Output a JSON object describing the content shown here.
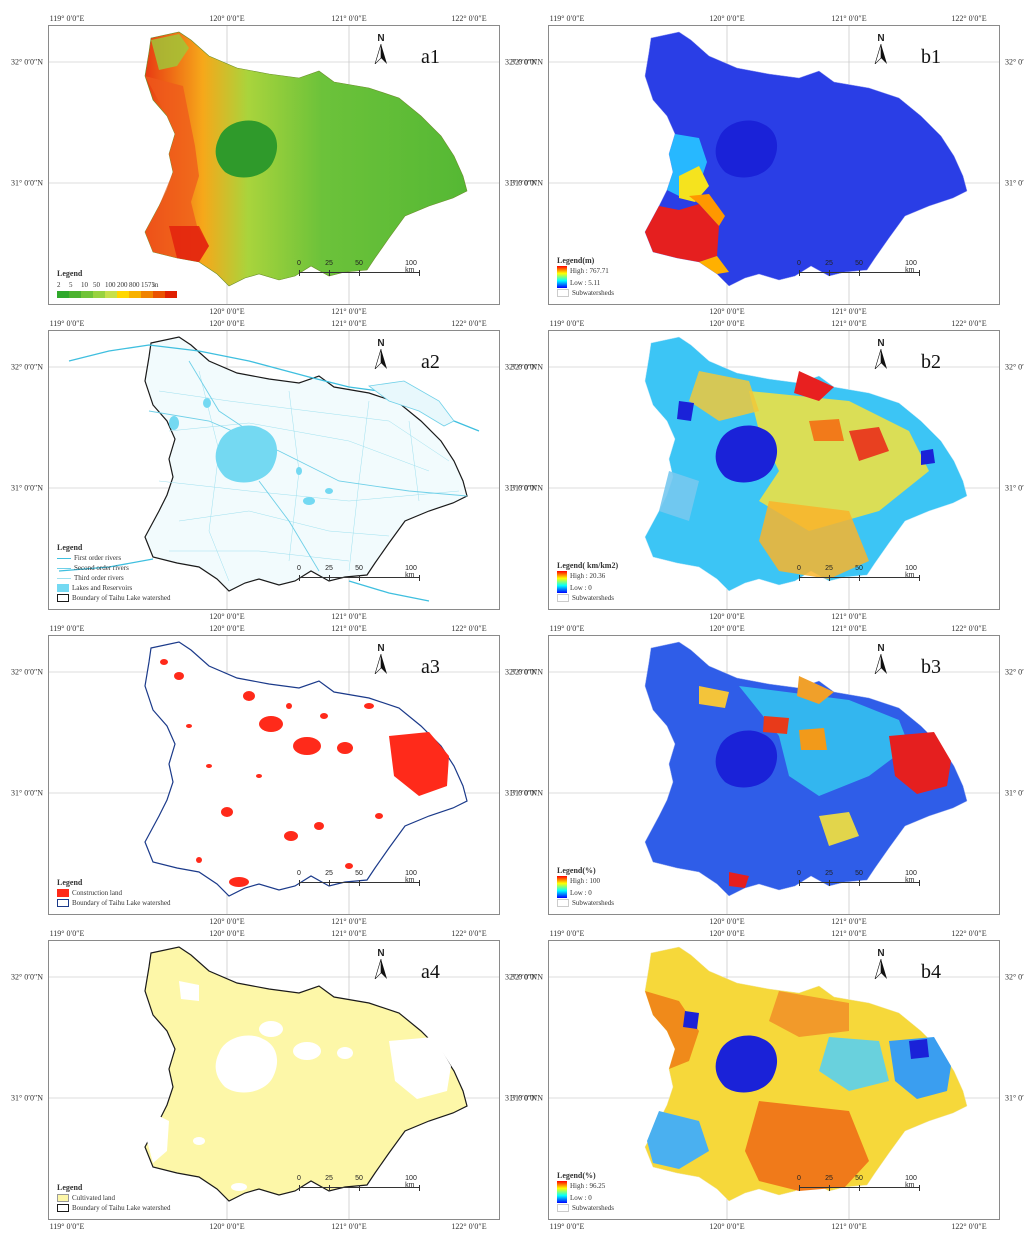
{
  "graticule": {
    "top": [
      "119° 0′0″E",
      "120° 0′0″E",
      "121° 0′0″E",
      "122° 0′0″E"
    ],
    "left": [
      "32° 0′0″N",
      "31° 0′0″N"
    ]
  },
  "scale": {
    "ticks": [
      "0",
      "25",
      "50",
      "100 km"
    ]
  },
  "north_label": "N",
  "colors": {
    "dem_scale": [
      "#2fa82b",
      "#4cb22f",
      "#70c437",
      "#98d33f",
      "#c6e04a",
      "#ffd700",
      "#f8b100",
      "#f08300",
      "#ea5200",
      "#e01f00"
    ],
    "rivers": "#69d2ea",
    "construction": "#ff2a1a",
    "cultivated": "#fdf7a8",
    "boundary_dark": "#1a1a1a",
    "boundary_blue": "#1b3a8a"
  },
  "panels": [
    {
      "id": "a1",
      "label": "a1",
      "legend": {
        "title": "Legend",
        "dem_values": [
          "2",
          "5",
          "10",
          "50",
          "100",
          "200",
          "800",
          "1575"
        ],
        "unit": "m"
      }
    },
    {
      "id": "b1",
      "label": "b1",
      "legend": {
        "title": "Legend(m)",
        "high": "High : 767.71",
        "low": "Low : 5.11",
        "sub": "Subwatersheds"
      }
    },
    {
      "id": "a2",
      "label": "a2",
      "legend": {
        "title": "Legend",
        "items": [
          "First order rivers",
          "Second order rivers",
          "Third order rivers",
          "Lakes and Reservoirs",
          "Boundary of Taihu Lake watershed"
        ]
      }
    },
    {
      "id": "b2",
      "label": "b2",
      "legend": {
        "title": "Legend( km/km2)",
        "high": "High : 20.36",
        "low": "Low : 0",
        "sub": "Subwatersheds"
      }
    },
    {
      "id": "a3",
      "label": "a3",
      "legend": {
        "title": "Legend",
        "items": [
          "Construction land",
          "Boundary of Taihu Lake watershed"
        ]
      }
    },
    {
      "id": "b3",
      "label": "b3",
      "legend": {
        "title": "Legend(%)",
        "high": "High : 100",
        "low": "Low : 0",
        "sub": "Subwatersheds"
      }
    },
    {
      "id": "a4",
      "label": "a4",
      "legend": {
        "title": "Legend",
        "items": [
          "Cultivated land",
          "Boundary of Taihu Lake watershed"
        ]
      }
    },
    {
      "id": "b4",
      "label": "b4",
      "legend": {
        "title": "Legend(%)",
        "high": "High : 96.25",
        "low": "Low : 0",
        "sub": "Subwatersheds"
      }
    }
  ]
}
